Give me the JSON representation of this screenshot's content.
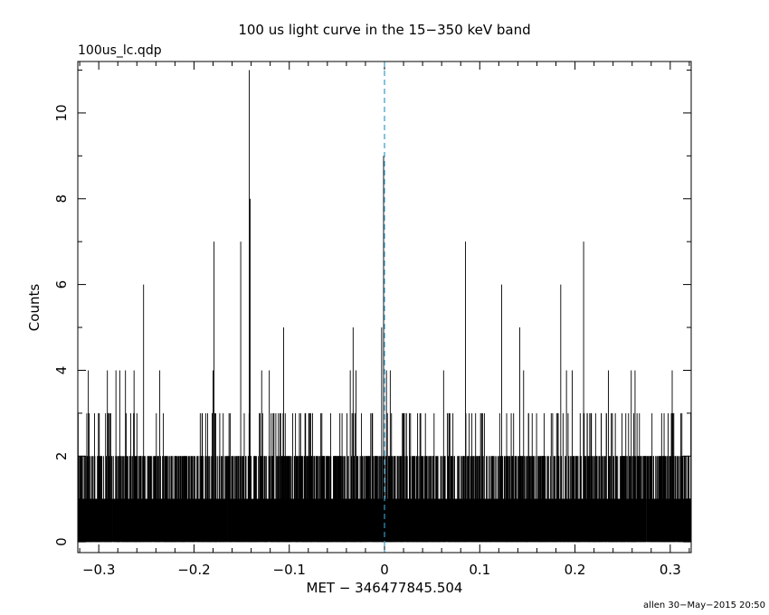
{
  "chart_data": {
    "type": "bar",
    "title": "100 us light curve in the 15−350 keV band",
    "file_label": "100us_lc.qdp",
    "xlabel": "MET − 346477845.504",
    "ylabel": "Counts",
    "footer": "allen 30−May−2015 20:50",
    "xlim": [
      -0.322,
      0.322
    ],
    "ylim": [
      -0.25,
      11.2
    ],
    "x_ticks": [
      -0.3,
      -0.2,
      -0.1,
      0,
      0.1,
      0.2,
      0.3
    ],
    "x_tick_labels": [
      "−0.3",
      "−0.2",
      "−0.1",
      "0",
      "0.1",
      "0.2",
      "0.3"
    ],
    "y_ticks": [
      0,
      2,
      4,
      6,
      8,
      10
    ],
    "y_tick_labels": [
      "0",
      "2",
      "4",
      "6",
      "8",
      "10"
    ],
    "bin_width": 0.0001,
    "trigger_line_x": 0,
    "trigger_line_color": "#3399cc",
    "baseline_max_counts": 2,
    "peaks": [
      {
        "x": -0.142,
        "y": 11
      },
      {
        "x": -0.141,
        "y": 8
      },
      {
        "x": -0.179,
        "y": 7
      },
      {
        "x": -0.151,
        "y": 7
      },
      {
        "x": -0.253,
        "y": 6
      },
      {
        "x": -0.106,
        "y": 5
      },
      {
        "x": -0.033,
        "y": 5
      },
      {
        "x": -0.003,
        "y": 5
      },
      {
        "x": -0.001,
        "y": 9
      },
      {
        "x": 0.085,
        "y": 7
      },
      {
        "x": 0.123,
        "y": 6
      },
      {
        "x": 0.142,
        "y": 5
      },
      {
        "x": 0.185,
        "y": 6
      },
      {
        "x": 0.209,
        "y": 7
      },
      {
        "x": 0.002,
        "y": 4
      },
      {
        "x": -0.311,
        "y": 4
      },
      {
        "x": -0.291,
        "y": 4
      },
      {
        "x": -0.282,
        "y": 4
      },
      {
        "x": -0.278,
        "y": 4
      },
      {
        "x": -0.272,
        "y": 4
      },
      {
        "x": -0.263,
        "y": 4
      },
      {
        "x": -0.236,
        "y": 4
      },
      {
        "x": -0.18,
        "y": 4
      },
      {
        "x": -0.129,
        "y": 4
      },
      {
        "x": -0.121,
        "y": 4
      },
      {
        "x": -0.036,
        "y": 4
      },
      {
        "x": -0.03,
        "y": 4
      },
      {
        "x": 0.006,
        "y": 4
      },
      {
        "x": 0.062,
        "y": 4
      },
      {
        "x": 0.146,
        "y": 4
      },
      {
        "x": 0.191,
        "y": 4
      },
      {
        "x": 0.197,
        "y": 4
      },
      {
        "x": 0.235,
        "y": 4
      },
      {
        "x": 0.259,
        "y": 4
      },
      {
        "x": 0.263,
        "y": 4
      },
      {
        "x": 0.302,
        "y": 4
      }
    ]
  }
}
